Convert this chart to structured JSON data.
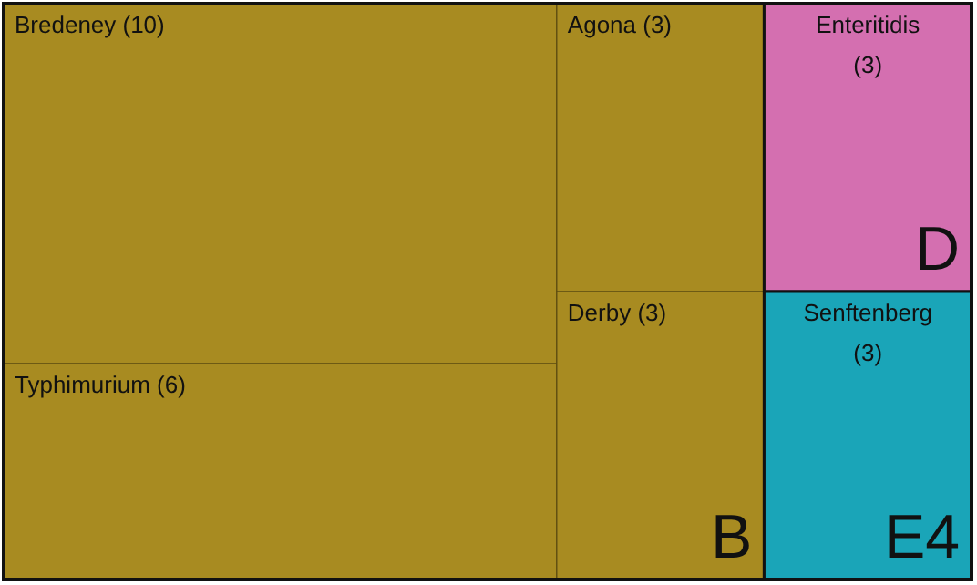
{
  "chart_data": {
    "type": "other",
    "categories": [
      "Bredeney",
      "Typhimurium",
      "Agona",
      "Derby",
      "Enteritidis",
      "Senftenberg"
    ],
    "values": [
      10,
      6,
      3,
      3,
      3,
      3
    ],
    "value_labels": [
      "(10)",
      "(6)",
      "(3)",
      "(3)",
      "(3)",
      "(3)"
    ],
    "colors": [
      "#a88b21",
      "#a88b21",
      "#a88b21",
      "#a88b21",
      "#d46fb0",
      "#1aa5b8"
    ],
    "annotations": [
      {
        "text": "B",
        "x": "Derby"
      },
      {
        "text": "D",
        "x": "Enteritidis"
      },
      {
        "text": "E4",
        "x": "Senftenberg"
      }
    ]
  }
}
